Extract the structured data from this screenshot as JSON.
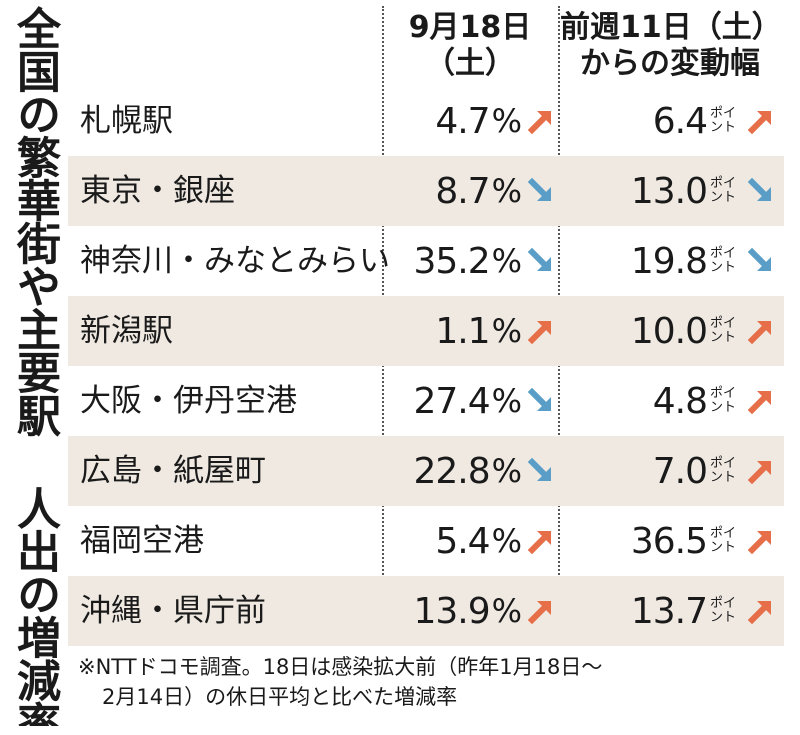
{
  "title": "全国の繁華街や主要駅 人出の増減率",
  "header": {
    "date_line1": "9月18日",
    "date_line2": "（土）",
    "change_line1": "前週11日（土）",
    "change_line2": "からの変動幅"
  },
  "unit_label": {
    "line1": "ポイ",
    "line2": "ント"
  },
  "percent_sign": "%",
  "colors": {
    "up": "#e66f4a",
    "down": "#5a9ec7",
    "shade": "#efe9e2"
  },
  "rows": [
    {
      "name": "札幌駅",
      "rate": "4.7",
      "rate_dir": "up",
      "change": "6.4",
      "change_dir": "up"
    },
    {
      "name": "東京・銀座",
      "rate": "8.7",
      "rate_dir": "down",
      "change": "13.0",
      "change_dir": "down"
    },
    {
      "name": "神奈川・みなとみらい",
      "rate": "35.2",
      "rate_dir": "down",
      "change": "19.8",
      "change_dir": "down"
    },
    {
      "name": "新潟駅",
      "rate": "1.1",
      "rate_dir": "up",
      "change": "10.0",
      "change_dir": "up"
    },
    {
      "name": "大阪・伊丹空港",
      "rate": "27.4",
      "rate_dir": "down",
      "change": "4.8",
      "change_dir": "up"
    },
    {
      "name": "広島・紙屋町",
      "rate": "22.8",
      "rate_dir": "down",
      "change": "7.0",
      "change_dir": "up"
    },
    {
      "name": "福岡空港",
      "rate": "5.4",
      "rate_dir": "up",
      "change": "36.5",
      "change_dir": "up"
    },
    {
      "name": "沖縄・県庁前",
      "rate": "13.9",
      "rate_dir": "up",
      "change": "13.7",
      "change_dir": "up"
    }
  ],
  "note": {
    "line1": "※NTTドコモ調査。18日は感染拡大前（昨年1月18日～",
    "line2": "2月14日）の休日平均と比べた増減率"
  }
}
